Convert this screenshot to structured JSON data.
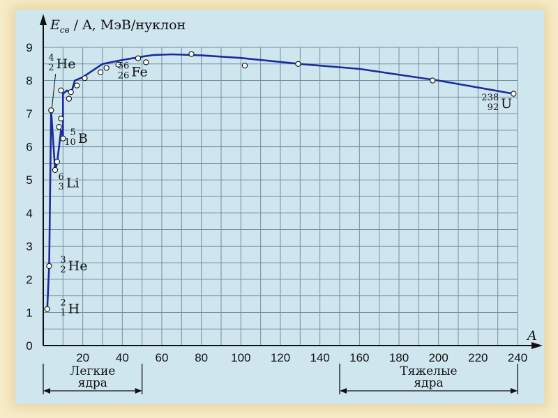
{
  "colors": {
    "page_bg": "#f7ecc8",
    "plot_bg": "#cfe6ef",
    "grid": "#6e8fa4",
    "curve": "#1b2a9c",
    "axis": "#111111"
  },
  "chart_data": {
    "type": "line",
    "ylabel_symbol": "E",
    "ylabel_subscript": "св",
    "ylabel_rest": " / A, МэВ/нуклон",
    "xlabel": "A",
    "xlim": [
      0,
      240
    ],
    "ylim": [
      0,
      9
    ],
    "xticks": [
      "20",
      "40",
      "60",
      "80",
      "100",
      "120",
      "140",
      "160",
      "180",
      "200",
      "220",
      "240"
    ],
    "yticks": [
      "0",
      "1",
      "2",
      "3",
      "4",
      "5",
      "6",
      "7",
      "8",
      "9"
    ],
    "grid": true,
    "curve": [
      [
        2,
        1.1
      ],
      [
        3,
        2.4
      ],
      [
        4,
        7.1
      ],
      [
        6,
        5.3
      ],
      [
        7,
        5.5
      ],
      [
        9,
        6.5
      ],
      [
        10,
        6.3
      ],
      [
        10,
        7.6
      ],
      [
        12,
        7.7
      ],
      [
        14,
        7.6
      ],
      [
        16,
        8.0
      ],
      [
        20,
        8.1
      ],
      [
        30,
        8.5
      ],
      [
        40,
        8.62
      ],
      [
        50,
        8.72
      ],
      [
        56,
        8.77
      ],
      [
        65,
        8.79
      ],
      [
        80,
        8.76
      ],
      [
        100,
        8.68
      ],
      [
        130,
        8.5
      ],
      [
        160,
        8.35
      ],
      [
        200,
        8.0
      ],
      [
        238,
        7.6
      ]
    ],
    "points": [
      [
        2,
        1.1
      ],
      [
        3,
        2.4
      ],
      [
        4,
        7.1
      ],
      [
        6,
        5.3
      ],
      [
        7,
        5.55
      ],
      [
        8,
        6.6
      ],
      [
        9,
        6.85
      ],
      [
        10,
        6.25
      ],
      [
        9,
        7.7
      ],
      [
        13,
        7.45
      ],
      [
        14,
        7.65
      ],
      [
        17,
        7.85
      ],
      [
        21,
        8.07
      ],
      [
        29,
        8.25
      ],
      [
        32,
        8.38
      ],
      [
        38,
        8.48
      ],
      [
        48,
        8.67
      ],
      [
        52,
        8.55
      ],
      [
        75,
        8.8
      ],
      [
        102,
        8.45
      ],
      [
        129,
        8.5
      ],
      [
        197,
        8.0
      ],
      [
        238,
        7.6
      ]
    ],
    "annotations": [
      {
        "mass": "2",
        "charge": "1",
        "symbol": "H",
        "x": 8,
        "y": 1.1
      },
      {
        "mass": "3",
        "charge": "2",
        "symbol": "He",
        "x": 8,
        "y": 2.4
      },
      {
        "mass": "6",
        "charge": "3",
        "symbol": "Li",
        "x": 7,
        "y": 4.9
      },
      {
        "mass": "5",
        "charge": "10",
        "symbol": "B",
        "x": 13,
        "y": 6.25
      },
      {
        "mass": "4",
        "charge": "2",
        "symbol": "He",
        "x": 2,
        "y": 8.5
      },
      {
        "mass": "56",
        "charge": "26",
        "symbol": "Fe",
        "x": 40,
        "y": 8.25
      },
      {
        "mass": "238",
        "charge": "92",
        "symbol": "U",
        "x": 227,
        "y": 7.3
      }
    ],
    "groups": [
      {
        "line1": "Легкие",
        "line2": "ядра",
        "from": 0,
        "to": 50
      },
      {
        "line1": "Тяжелые",
        "line2": "ядра",
        "from": 150,
        "to": 240
      }
    ]
  }
}
